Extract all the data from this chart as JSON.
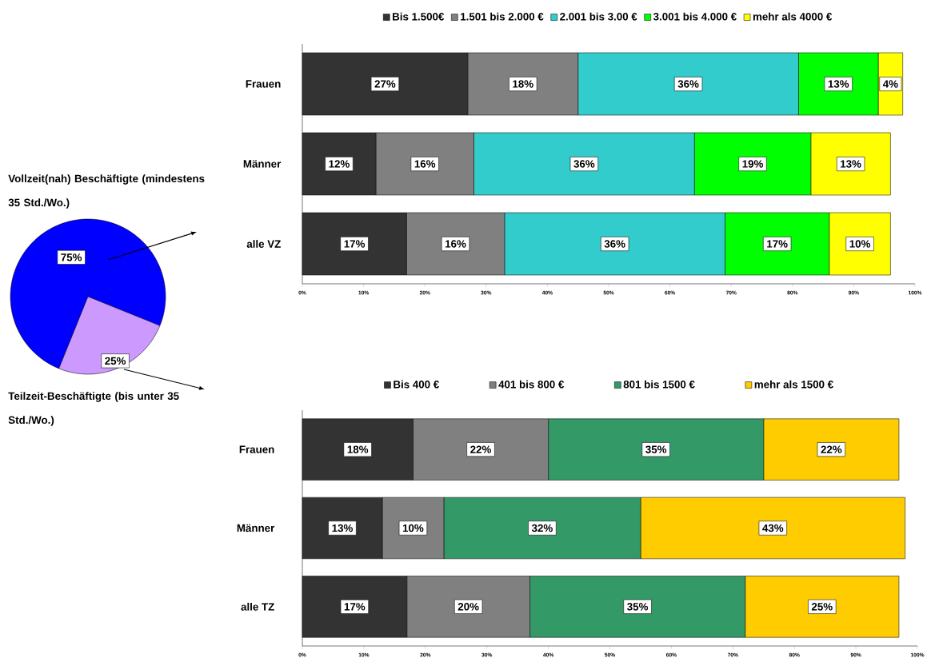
{
  "chart_data": [
    {
      "type": "pie",
      "categories": [
        "Vollzeit(nah) Beschäftigte (mindestens 35 Std./Wo.)",
        "Teilzeit-Beschäftigte (bis unter 35 Std./Wo.)"
      ],
      "values": [
        75,
        25
      ],
      "colors": [
        "#0000ff",
        "#cc99ff"
      ],
      "value_labels": [
        "75%",
        "25%"
      ]
    },
    {
      "type": "bar",
      "orientation": "horizontal",
      "stacked": true,
      "categories": [
        "Frauen",
        "Männer",
        "alle VZ"
      ],
      "legend": "top",
      "xlim": [
        0,
        100
      ],
      "xticks": [
        {
          "value": 0,
          "label": "0%"
        },
        {
          "value": 10,
          "label": "10%"
        },
        {
          "value": 20,
          "label": "20%"
        },
        {
          "value": 30,
          "label": "30%"
        },
        {
          "value": 40,
          "label": "40%"
        },
        {
          "value": 50,
          "label": "50%"
        },
        {
          "value": 60,
          "label": "60%"
        },
        {
          "value": 70,
          "label": "70%"
        },
        {
          "value": 80,
          "label": "80%"
        },
        {
          "value": 90,
          "label": "90%"
        },
        {
          "value": 100,
          "label": "100%"
        }
      ],
      "series": [
        {
          "name": "Bis  1.500€",
          "color": "#333333",
          "values": [
            27,
            12,
            17
          ],
          "value_labels": [
            "27%",
            "12%",
            "17%"
          ]
        },
        {
          "name": "1.501 bis 2.000 €",
          "color": "#808080",
          "values": [
            18,
            16,
            16
          ],
          "value_labels": [
            "18%",
            "16%",
            "16%"
          ]
        },
        {
          "name": "2.001 bis 3.00 €",
          "color": "#33cccc",
          "values": [
            36,
            36,
            36
          ],
          "value_labels": [
            "36%",
            "36%",
            "36%"
          ]
        },
        {
          "name": "3.001 bis 4.000 €",
          "color": "#00ff00",
          "values": [
            13,
            19,
            17
          ],
          "value_labels": [
            "13%",
            "19%",
            "17%"
          ]
        },
        {
          "name": "mehr als 4000 €",
          "color": "#ffff00",
          "values": [
            4,
            13,
            10
          ],
          "value_labels": [
            "4%",
            "13%",
            "10%"
          ]
        }
      ]
    },
    {
      "type": "bar",
      "orientation": "horizontal",
      "stacked": true,
      "categories": [
        "Frauen",
        "Männer",
        "alle TZ"
      ],
      "legend": "top",
      "xlim": [
        0,
        100
      ],
      "xticks": [
        {
          "value": 0,
          "label": "0%"
        },
        {
          "value": 10,
          "label": "10%"
        },
        {
          "value": 20,
          "label": "20%"
        },
        {
          "value": 30,
          "label": "30%"
        },
        {
          "value": 40,
          "label": "40%"
        },
        {
          "value": 50,
          "label": "50%"
        },
        {
          "value": 60,
          "label": "60%"
        },
        {
          "value": 70,
          "label": "70%"
        },
        {
          "value": 80,
          "label": "80%"
        },
        {
          "value": 90,
          "label": "90%"
        },
        {
          "value": 100,
          "label": "100%"
        }
      ],
      "series": [
        {
          "name": "Bis  400 €",
          "color": "#333333",
          "values": [
            18,
            13,
            17
          ],
          "value_labels": [
            "18%",
            "13%",
            "17%"
          ]
        },
        {
          "name": "401 bis  800 €",
          "color": "#808080",
          "values": [
            22,
            10,
            20
          ],
          "value_labels": [
            "22%",
            "10%",
            "20%"
          ]
        },
        {
          "name": "801 bis 1500 €",
          "color": "#339966",
          "values": [
            35,
            32,
            35
          ],
          "value_labels": [
            "35%",
            "32%",
            "35%"
          ]
        },
        {
          "name": "mehr als 1500 €",
          "color": "#ffcc00",
          "values": [
            22,
            43,
            25
          ],
          "value_labels": [
            "22%",
            "43%",
            "25%"
          ]
        }
      ]
    }
  ]
}
